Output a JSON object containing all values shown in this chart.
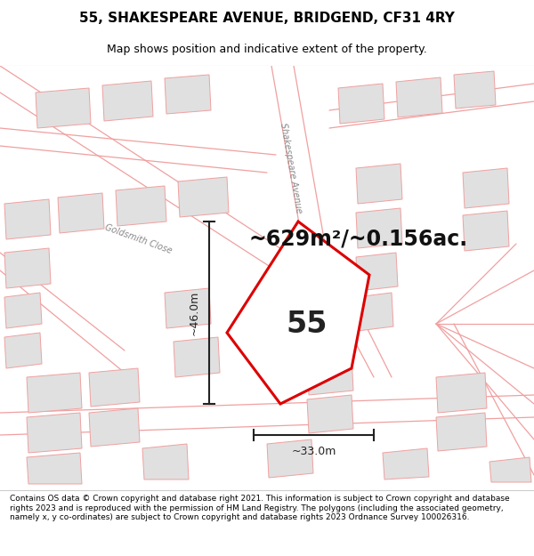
{
  "title": "55, SHAKESPEARE AVENUE, BRIDGEND, CF31 4RY",
  "subtitle": "Map shows position and indicative extent of the property.",
  "footer": "Contains OS data © Crown copyright and database right 2021. This information is subject to Crown copyright and database rights 2023 and is reproduced with the permission of HM Land Registry. The polygons (including the associated geometry, namely x, y co-ordinates) are subject to Crown copyright and database rights 2023 Ordnance Survey 100026316.",
  "area_text": "~629m²/~0.156ac.",
  "property_number": "55",
  "dim_width": "~33.0m",
  "dim_height": "~46.0m",
  "street_label_shakespeare": "Shakespeare Avenue",
  "street_label_goldsmith": "Goldsmith Close",
  "map_bg": "#f7f7f7",
  "property_fill": "#ffffff",
  "property_edge": "#dd0000",
  "building_fill": "#e0e0e0",
  "building_edge": "#f0a0a0",
  "road_line_color": "#f0a0a0",
  "title_fontsize": 11,
  "subtitle_fontsize": 9,
  "footer_fontsize": 6.5,
  "area_fontsize": 17,
  "num_fontsize": 24,
  "dim_fontsize": 9,
  "street_fontsize": 7
}
